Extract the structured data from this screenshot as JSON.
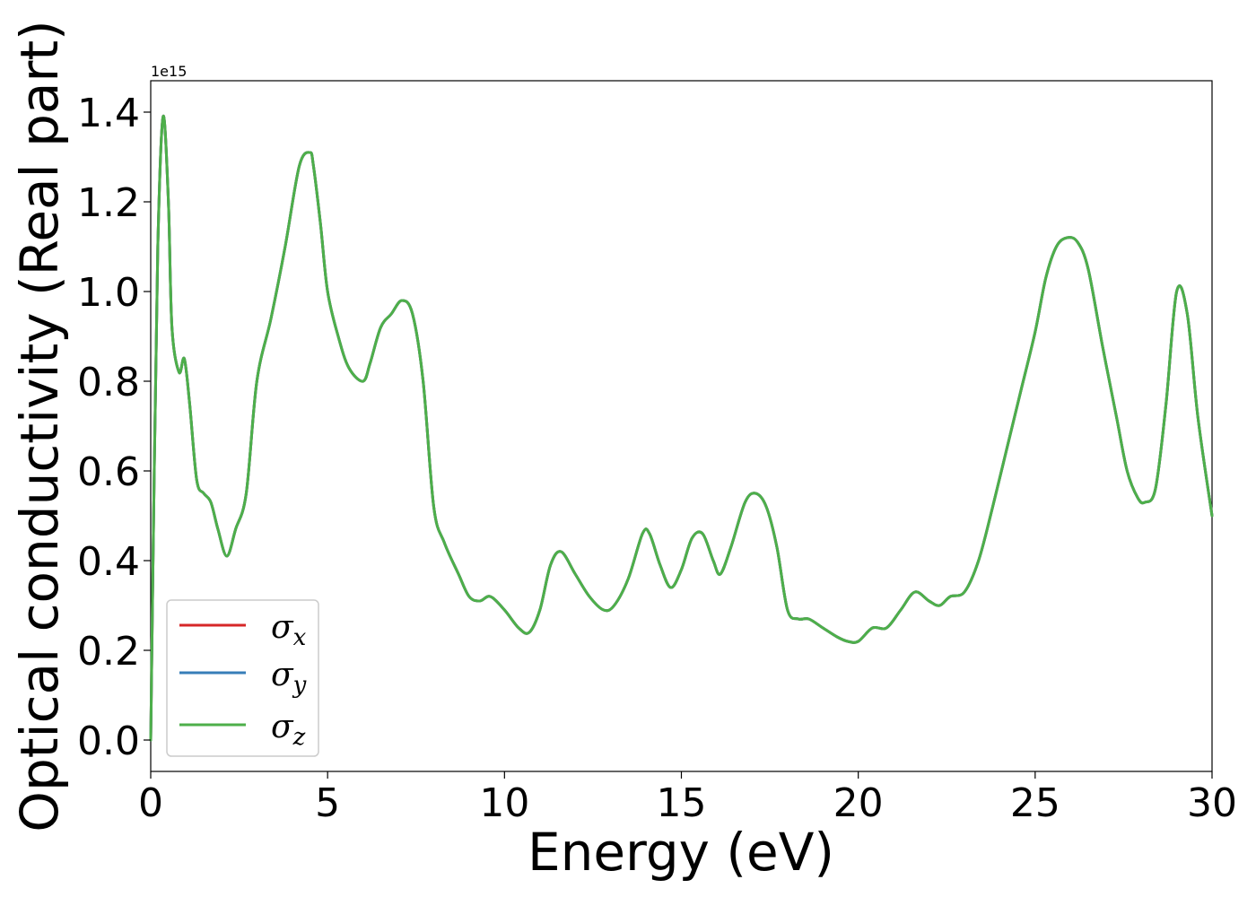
{
  "chart_data": {
    "type": "line",
    "xlabel": "Energy (eV)",
    "ylabel": "Optical conductivity (Real part)",
    "y_offset_label": "1e15",
    "y_scale_multiplier": 1000000000000000.0,
    "xlim": [
      0,
      30
    ],
    "ylim": [
      -0.07,
      1.47
    ],
    "xticks": [
      0,
      5,
      10,
      15,
      20,
      25,
      30
    ],
    "xtick_labels": [
      "0",
      "5",
      "10",
      "15",
      "20",
      "25",
      "30"
    ],
    "yticks": [
      0.0,
      0.2,
      0.4,
      0.6,
      0.8,
      1.0,
      1.2,
      1.4
    ],
    "ytick_labels": [
      "0.0",
      "0.2",
      "0.4",
      "0.6",
      "0.8",
      "1.0",
      "1.2",
      "1.4"
    ],
    "grid": false,
    "legend_position": "lower-left",
    "x": [
      0.0,
      0.1,
      0.2,
      0.35,
      0.5,
      0.6,
      0.8,
      0.95,
      1.1,
      1.3,
      1.5,
      1.7,
      1.9,
      2.15,
      2.4,
      2.7,
      3.0,
      3.4,
      3.8,
      4.2,
      4.5,
      4.6,
      4.8,
      5.0,
      5.3,
      5.6,
      6.0,
      6.2,
      6.5,
      6.8,
      7.1,
      7.4,
      7.7,
      8.0,
      8.3,
      8.7,
      9.0,
      9.3,
      9.6,
      10.0,
      10.4,
      10.7,
      11.0,
      11.3,
      11.6,
      12.0,
      12.4,
      12.8,
      13.1,
      13.5,
      13.9,
      14.1,
      14.4,
      14.7,
      15.0,
      15.3,
      15.6,
      15.9,
      16.1,
      16.4,
      16.8,
      17.1,
      17.4,
      17.7,
      18.0,
      18.3,
      18.6,
      19.0,
      19.4,
      19.7,
      20.0,
      20.4,
      20.8,
      21.2,
      21.6,
      22.0,
      22.3,
      22.6,
      23.0,
      23.4,
      23.8,
      24.2,
      24.6,
      25.0,
      25.3,
      25.6,
      25.9,
      26.2,
      26.5,
      26.9,
      27.3,
      27.6,
      27.9,
      28.1,
      28.4,
      28.7,
      29.0,
      29.3,
      29.6,
      30.0
    ],
    "series": [
      {
        "name": "σx",
        "color": "#d62728",
        "values": [
          0.0,
          0.6,
          1.1,
          1.39,
          1.2,
          0.92,
          0.82,
          0.85,
          0.75,
          0.58,
          0.55,
          0.53,
          0.47,
          0.41,
          0.47,
          0.55,
          0.8,
          0.94,
          1.1,
          1.28,
          1.31,
          1.28,
          1.15,
          1.0,
          0.9,
          0.83,
          0.8,
          0.84,
          0.92,
          0.95,
          0.98,
          0.95,
          0.8,
          0.52,
          0.44,
          0.37,
          0.32,
          0.31,
          0.32,
          0.29,
          0.25,
          0.24,
          0.29,
          0.39,
          0.42,
          0.37,
          0.32,
          0.29,
          0.3,
          0.36,
          0.46,
          0.46,
          0.39,
          0.34,
          0.38,
          0.45,
          0.46,
          0.4,
          0.37,
          0.43,
          0.53,
          0.55,
          0.52,
          0.43,
          0.29,
          0.27,
          0.27,
          0.25,
          0.23,
          0.22,
          0.22,
          0.25,
          0.25,
          0.29,
          0.33,
          0.31,
          0.3,
          0.32,
          0.33,
          0.4,
          0.52,
          0.65,
          0.78,
          0.91,
          1.03,
          1.1,
          1.12,
          1.11,
          1.05,
          0.88,
          0.72,
          0.6,
          0.54,
          0.53,
          0.56,
          0.75,
          1.0,
          0.95,
          0.72,
          0.5
        ]
      },
      {
        "name": "σy",
        "color": "#377eb8",
        "values": [
          0.0,
          0.6,
          1.1,
          1.39,
          1.2,
          0.92,
          0.82,
          0.85,
          0.75,
          0.58,
          0.55,
          0.53,
          0.47,
          0.41,
          0.47,
          0.55,
          0.8,
          0.94,
          1.1,
          1.28,
          1.31,
          1.28,
          1.15,
          1.0,
          0.9,
          0.83,
          0.8,
          0.84,
          0.92,
          0.95,
          0.98,
          0.95,
          0.8,
          0.52,
          0.44,
          0.37,
          0.32,
          0.31,
          0.32,
          0.29,
          0.25,
          0.24,
          0.29,
          0.39,
          0.42,
          0.37,
          0.32,
          0.29,
          0.3,
          0.36,
          0.46,
          0.46,
          0.39,
          0.34,
          0.38,
          0.45,
          0.46,
          0.4,
          0.37,
          0.43,
          0.53,
          0.55,
          0.52,
          0.43,
          0.29,
          0.27,
          0.27,
          0.25,
          0.23,
          0.22,
          0.22,
          0.25,
          0.25,
          0.29,
          0.33,
          0.31,
          0.3,
          0.32,
          0.33,
          0.4,
          0.52,
          0.65,
          0.78,
          0.91,
          1.03,
          1.1,
          1.12,
          1.11,
          1.05,
          0.88,
          0.72,
          0.6,
          0.54,
          0.53,
          0.56,
          0.75,
          1.0,
          0.95,
          0.72,
          0.5
        ]
      },
      {
        "name": "σz",
        "color": "#4daf4a",
        "values": [
          0.0,
          0.6,
          1.1,
          1.39,
          1.2,
          0.92,
          0.82,
          0.85,
          0.75,
          0.58,
          0.55,
          0.53,
          0.47,
          0.41,
          0.47,
          0.55,
          0.8,
          0.94,
          1.1,
          1.28,
          1.31,
          1.28,
          1.15,
          1.0,
          0.9,
          0.83,
          0.8,
          0.84,
          0.92,
          0.95,
          0.98,
          0.95,
          0.8,
          0.52,
          0.44,
          0.37,
          0.32,
          0.31,
          0.32,
          0.29,
          0.25,
          0.24,
          0.29,
          0.39,
          0.42,
          0.37,
          0.32,
          0.29,
          0.3,
          0.36,
          0.46,
          0.46,
          0.39,
          0.34,
          0.38,
          0.45,
          0.46,
          0.4,
          0.37,
          0.43,
          0.53,
          0.55,
          0.52,
          0.43,
          0.29,
          0.27,
          0.27,
          0.25,
          0.23,
          0.22,
          0.22,
          0.25,
          0.25,
          0.29,
          0.33,
          0.31,
          0.3,
          0.32,
          0.33,
          0.4,
          0.52,
          0.65,
          0.78,
          0.91,
          1.03,
          1.1,
          1.12,
          1.11,
          1.05,
          0.88,
          0.72,
          0.6,
          0.54,
          0.53,
          0.56,
          0.75,
          1.0,
          0.95,
          0.72,
          0.5
        ]
      }
    ],
    "legend": {
      "entries": [
        {
          "symbol": "σ",
          "subscript": "x",
          "color": "#d62728"
        },
        {
          "symbol": "σ",
          "subscript": "y",
          "color": "#377eb8"
        },
        {
          "symbol": "σ",
          "subscript": "z",
          "color": "#4daf4a"
        }
      ]
    }
  }
}
